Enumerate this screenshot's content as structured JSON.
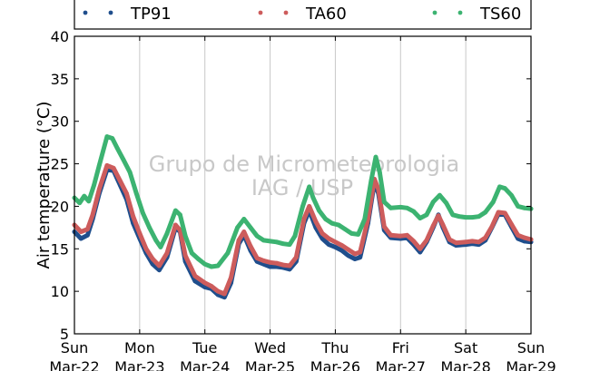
{
  "chart_data": {
    "type": "line",
    "ylabel": "Air temperature (°C)",
    "ylim": [
      5,
      40
    ],
    "yticks": [
      5,
      10,
      15,
      20,
      25,
      30,
      35,
      40
    ],
    "xlim": [
      0,
      7
    ],
    "xticks": [
      {
        "x": 0,
        "day": "Sun",
        "date": "Mar-22"
      },
      {
        "x": 1,
        "day": "Mon",
        "date": "Mar-23"
      },
      {
        "x": 2,
        "day": "Tue",
        "date": "Mar-24"
      },
      {
        "x": 3,
        "day": "Wed",
        "date": "Mar-25"
      },
      {
        "x": 4,
        "day": "Thu",
        "date": "Mar-26"
      },
      {
        "x": 5,
        "day": "Fri",
        "date": "Mar-27"
      },
      {
        "x": 6,
        "day": "Sat",
        "date": "Mar-28"
      },
      {
        "x": 7,
        "day": "Sun",
        "date": "Mar-29"
      }
    ],
    "grid": "vertical",
    "legend_position": "top",
    "watermark": [
      "Grupo de Micrometeorologia",
      "IAG / USP"
    ],
    "series": [
      {
        "name": "TP91",
        "color": "#1f4e8c",
        "points": [
          [
            0,
            17.0
          ],
          [
            0.1,
            16.2
          ],
          [
            0.2,
            16.6
          ],
          [
            0.28,
            18.5
          ],
          [
            0.38,
            21.5
          ],
          [
            0.5,
            24.3
          ],
          [
            0.6,
            24.2
          ],
          [
            0.7,
            22.5
          ],
          [
            0.8,
            20.8
          ],
          [
            0.9,
            18.0
          ],
          [
            1.0,
            16.2
          ],
          [
            1.1,
            14.5
          ],
          [
            1.2,
            13.2
          ],
          [
            1.3,
            12.5
          ],
          [
            1.42,
            14.0
          ],
          [
            1.55,
            17.5
          ],
          [
            1.62,
            17.0
          ],
          [
            1.7,
            13.5
          ],
          [
            1.85,
            11.2
          ],
          [
            2.0,
            10.5
          ],
          [
            2.1,
            10.3
          ],
          [
            2.2,
            9.6
          ],
          [
            2.3,
            9.3
          ],
          [
            2.4,
            11.0
          ],
          [
            2.52,
            15.6
          ],
          [
            2.6,
            16.6
          ],
          [
            2.7,
            14.8
          ],
          [
            2.8,
            13.5
          ],
          [
            2.9,
            13.2
          ],
          [
            3.0,
            12.9
          ],
          [
            3.1,
            12.9
          ],
          [
            3.2,
            12.8
          ],
          [
            3.3,
            12.6
          ],
          [
            3.4,
            13.5
          ],
          [
            3.52,
            18.0
          ],
          [
            3.6,
            19.5
          ],
          [
            3.7,
            17.5
          ],
          [
            3.8,
            16.2
          ],
          [
            3.9,
            15.5
          ],
          [
            4.0,
            15.2
          ],
          [
            4.1,
            14.8
          ],
          [
            4.2,
            14.2
          ],
          [
            4.3,
            13.8
          ],
          [
            4.38,
            14.0
          ],
          [
            4.5,
            18.0
          ],
          [
            4.6,
            22.8
          ],
          [
            4.66,
            21.5
          ],
          [
            4.75,
            17.2
          ],
          [
            4.85,
            16.3
          ],
          [
            5.0,
            16.2
          ],
          [
            5.1,
            16.3
          ],
          [
            5.2,
            15.5
          ],
          [
            5.3,
            14.6
          ],
          [
            5.4,
            15.8
          ],
          [
            5.5,
            17.5
          ],
          [
            5.58,
            19.0
          ],
          [
            5.65,
            17.5
          ],
          [
            5.75,
            15.8
          ],
          [
            5.85,
            15.4
          ],
          [
            6.0,
            15.5
          ],
          [
            6.1,
            15.6
          ],
          [
            6.2,
            15.5
          ],
          [
            6.3,
            16.0
          ],
          [
            6.4,
            17.5
          ],
          [
            6.5,
            19.1
          ],
          [
            6.6,
            19.0
          ],
          [
            6.7,
            17.6
          ],
          [
            6.8,
            16.2
          ],
          [
            6.9,
            15.9
          ],
          [
            7.0,
            15.8
          ]
        ]
      },
      {
        "name": "TA60",
        "color": "#cd5c5c",
        "points": [
          [
            0,
            17.8
          ],
          [
            0.1,
            17.0
          ],
          [
            0.2,
            17.3
          ],
          [
            0.28,
            19.0
          ],
          [
            0.38,
            22.0
          ],
          [
            0.5,
            24.8
          ],
          [
            0.6,
            24.5
          ],
          [
            0.7,
            23.0
          ],
          [
            0.8,
            21.5
          ],
          [
            0.9,
            18.8
          ],
          [
            1.0,
            16.8
          ],
          [
            1.1,
            15.0
          ],
          [
            1.2,
            13.8
          ],
          [
            1.3,
            13.0
          ],
          [
            1.42,
            14.5
          ],
          [
            1.55,
            17.8
          ],
          [
            1.62,
            17.2
          ],
          [
            1.7,
            14.2
          ],
          [
            1.85,
            11.8
          ],
          [
            2.0,
            11.0
          ],
          [
            2.1,
            10.6
          ],
          [
            2.2,
            10.0
          ],
          [
            2.3,
            9.7
          ],
          [
            2.4,
            11.6
          ],
          [
            2.52,
            16.0
          ],
          [
            2.6,
            17.0
          ],
          [
            2.7,
            15.3
          ],
          [
            2.8,
            13.9
          ],
          [
            2.9,
            13.6
          ],
          [
            3.0,
            13.4
          ],
          [
            3.1,
            13.3
          ],
          [
            3.2,
            13.1
          ],
          [
            3.3,
            13.0
          ],
          [
            3.4,
            14.0
          ],
          [
            3.52,
            18.5
          ],
          [
            3.6,
            20.0
          ],
          [
            3.7,
            18.2
          ],
          [
            3.8,
            16.8
          ],
          [
            3.9,
            16.2
          ],
          [
            4.0,
            15.8
          ],
          [
            4.1,
            15.4
          ],
          [
            4.2,
            14.9
          ],
          [
            4.3,
            14.4
          ],
          [
            4.38,
            14.6
          ],
          [
            4.5,
            18.5
          ],
          [
            4.6,
            23.2
          ],
          [
            4.66,
            22.0
          ],
          [
            4.75,
            17.6
          ],
          [
            4.85,
            16.6
          ],
          [
            5.0,
            16.5
          ],
          [
            5.1,
            16.6
          ],
          [
            5.2,
            15.9
          ],
          [
            5.3,
            15.0
          ],
          [
            5.4,
            16.0
          ],
          [
            5.5,
            17.7
          ],
          [
            5.58,
            18.9
          ],
          [
            5.65,
            17.8
          ],
          [
            5.75,
            16.1
          ],
          [
            5.85,
            15.7
          ],
          [
            6.0,
            15.8
          ],
          [
            6.1,
            15.9
          ],
          [
            6.2,
            15.8
          ],
          [
            6.3,
            16.3
          ],
          [
            6.4,
            17.6
          ],
          [
            6.5,
            19.3
          ],
          [
            6.6,
            19.2
          ],
          [
            6.7,
            17.9
          ],
          [
            6.8,
            16.6
          ],
          [
            6.9,
            16.3
          ],
          [
            7.0,
            16.1
          ]
        ]
      },
      {
        "name": "TS60",
        "color": "#3cb371",
        "points": [
          [
            0,
            21.0
          ],
          [
            0.08,
            20.4
          ],
          [
            0.15,
            21.2
          ],
          [
            0.22,
            20.6
          ],
          [
            0.3,
            22.5
          ],
          [
            0.38,
            24.8
          ],
          [
            0.5,
            28.2
          ],
          [
            0.58,
            28.0
          ],
          [
            0.66,
            26.8
          ],
          [
            0.75,
            25.5
          ],
          [
            0.85,
            24.0
          ],
          [
            0.95,
            21.5
          ],
          [
            1.05,
            19.2
          ],
          [
            1.15,
            17.5
          ],
          [
            1.25,
            16.0
          ],
          [
            1.32,
            15.2
          ],
          [
            1.42,
            16.8
          ],
          [
            1.55,
            19.5
          ],
          [
            1.62,
            19.0
          ],
          [
            1.7,
            16.5
          ],
          [
            1.8,
            14.5
          ],
          [
            1.9,
            13.8
          ],
          [
            2.0,
            13.2
          ],
          [
            2.1,
            12.9
          ],
          [
            2.2,
            13.0
          ],
          [
            2.35,
            14.5
          ],
          [
            2.5,
            17.5
          ],
          [
            2.6,
            18.5
          ],
          [
            2.7,
            17.5
          ],
          [
            2.8,
            16.5
          ],
          [
            2.9,
            16.0
          ],
          [
            3.0,
            15.9
          ],
          [
            3.1,
            15.8
          ],
          [
            3.2,
            15.6
          ],
          [
            3.3,
            15.5
          ],
          [
            3.38,
            16.5
          ],
          [
            3.5,
            20.0
          ],
          [
            3.6,
            22.3
          ],
          [
            3.66,
            21.0
          ],
          [
            3.75,
            19.5
          ],
          [
            3.85,
            18.5
          ],
          [
            3.95,
            18.0
          ],
          [
            4.05,
            17.8
          ],
          [
            4.15,
            17.3
          ],
          [
            4.25,
            16.8
          ],
          [
            4.35,
            16.7
          ],
          [
            4.45,
            18.5
          ],
          [
            4.55,
            23.0
          ],
          [
            4.62,
            25.8
          ],
          [
            4.68,
            24.0
          ],
          [
            4.75,
            20.5
          ],
          [
            4.85,
            19.8
          ],
          [
            5.0,
            19.9
          ],
          [
            5.1,
            19.8
          ],
          [
            5.2,
            19.4
          ],
          [
            5.3,
            18.6
          ],
          [
            5.4,
            19.0
          ],
          [
            5.5,
            20.5
          ],
          [
            5.6,
            21.3
          ],
          [
            5.7,
            20.4
          ],
          [
            5.8,
            19.0
          ],
          [
            5.9,
            18.8
          ],
          [
            6.0,
            18.7
          ],
          [
            6.1,
            18.7
          ],
          [
            6.2,
            18.8
          ],
          [
            6.3,
            19.3
          ],
          [
            6.42,
            20.5
          ],
          [
            6.52,
            22.3
          ],
          [
            6.6,
            22.1
          ],
          [
            6.7,
            21.3
          ],
          [
            6.8,
            20.0
          ],
          [
            6.9,
            19.8
          ],
          [
            7.0,
            19.7
          ]
        ]
      }
    ]
  }
}
